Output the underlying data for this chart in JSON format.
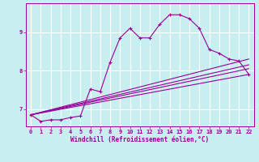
{
  "xlabel": "Windchill (Refroidissement éolien,°C)",
  "background_color": "#c8eef0",
  "grid_color": "#ffffff",
  "line_color": "#990099",
  "xlim": [
    -0.5,
    22.5
  ],
  "ylim": [
    6.55,
    9.75
  ],
  "xticks": [
    0,
    1,
    2,
    3,
    4,
    5,
    6,
    7,
    8,
    9,
    10,
    11,
    12,
    13,
    14,
    15,
    16,
    17,
    18,
    19,
    20,
    21,
    22
  ],
  "yticks": [
    7,
    8,
    9
  ],
  "curve1_x": [
    0,
    1,
    2,
    3,
    4,
    5,
    6,
    7,
    8,
    9,
    10,
    11,
    12,
    13,
    14,
    15,
    16,
    17,
    18,
    19,
    20,
    21,
    22
  ],
  "curve1_y": [
    6.85,
    6.68,
    6.72,
    6.72,
    6.78,
    6.82,
    7.52,
    7.45,
    8.22,
    8.85,
    9.1,
    8.85,
    8.85,
    9.2,
    9.45,
    9.45,
    9.35,
    9.1,
    8.55,
    8.45,
    8.3,
    8.25,
    7.9
  ],
  "curve2_x": [
    0,
    22
  ],
  "curve2_y": [
    6.85,
    8.3
  ],
  "curve3_x": [
    0,
    22
  ],
  "curve3_y": [
    6.85,
    8.15
  ],
  "curve4_x": [
    0,
    22
  ],
  "curve4_y": [
    6.85,
    8.05
  ],
  "curve5_x": [
    0,
    22
  ],
  "curve5_y": [
    6.85,
    7.9
  ]
}
